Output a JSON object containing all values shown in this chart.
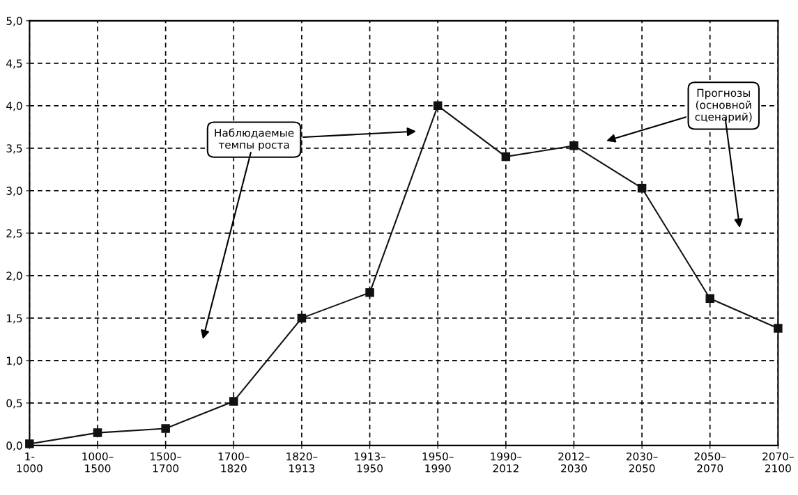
{
  "chart_data": {
    "type": "line",
    "categories": [
      "1-\n1000",
      "1000–\n1500",
      "1500–\n1700",
      "1700–\n1820",
      "1820–\n1913",
      "1913–\n1950",
      "1950–\n1990",
      "1990–\n2012",
      "2012–\n2030",
      "2030–\n2050",
      "2050–\n2070",
      "2070–\n2100"
    ],
    "series": [
      {
        "color": "#111111",
        "values": [
          0.02,
          0.15,
          0.2,
          0.52,
          1.5,
          1.8,
          4.0,
          3.4,
          3.53,
          3.03,
          1.73,
          1.38
        ]
      }
    ],
    "ylim": [
      0,
      5
    ],
    "yticks": [
      {
        "value": 0,
        "label": "0,0"
      },
      {
        "value": 0.5,
        "label": "0,5"
      },
      {
        "value": 1,
        "label": "1,0"
      },
      {
        "value": 1.5,
        "label": "1,5"
      },
      {
        "value": 2,
        "label": "2,0"
      },
      {
        "value": 2.5,
        "label": "2,5"
      },
      {
        "value": 3,
        "label": "3,0"
      },
      {
        "value": 3.5,
        "label": "3,5"
      },
      {
        "value": 4,
        "label": "4,0"
      },
      {
        "value": 4.5,
        "label": "4,5"
      },
      {
        "value": 5,
        "label": "5,0"
      }
    ],
    "grid": true,
    "marker": "square",
    "line_style": "solid",
    "annotations": [
      "Наблюдаемые\nтемпы роста",
      "Прогнозы\n(основной\nсценарий)"
    ]
  }
}
